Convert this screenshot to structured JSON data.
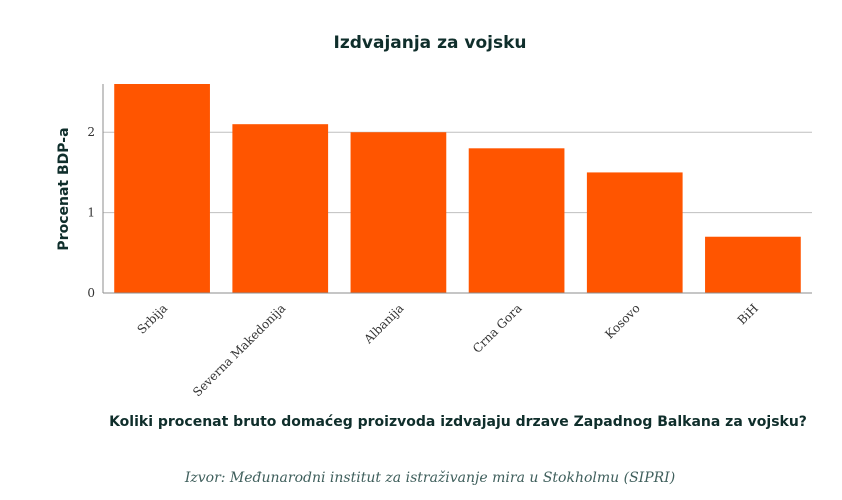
{
  "chart_data": {
    "type": "bar",
    "title": "Izdvajanja za vojsku",
    "ylabel": "Procenat BDP-a",
    "xlabel": "Koliki procenat bruto domaćeg proizvoda izdvajaju drzave Zapadnog Balkana za vojsku?",
    "source": "Izvor: Međunarodni institut za istraživanje mira u Stokholmu (SIPRI)",
    "categories": [
      "Srbija",
      "Severna Makedonija",
      "Albanija",
      "Crna Gora",
      "Kosovo",
      "BiH"
    ],
    "values": [
      2.6,
      2.1,
      2.0,
      1.8,
      1.5,
      0.7
    ],
    "yticks": [
      "0",
      "1",
      "2"
    ],
    "ylim": [
      0,
      2.6
    ],
    "grid": true,
    "legend": "none",
    "bar_color": "#ff5500"
  }
}
